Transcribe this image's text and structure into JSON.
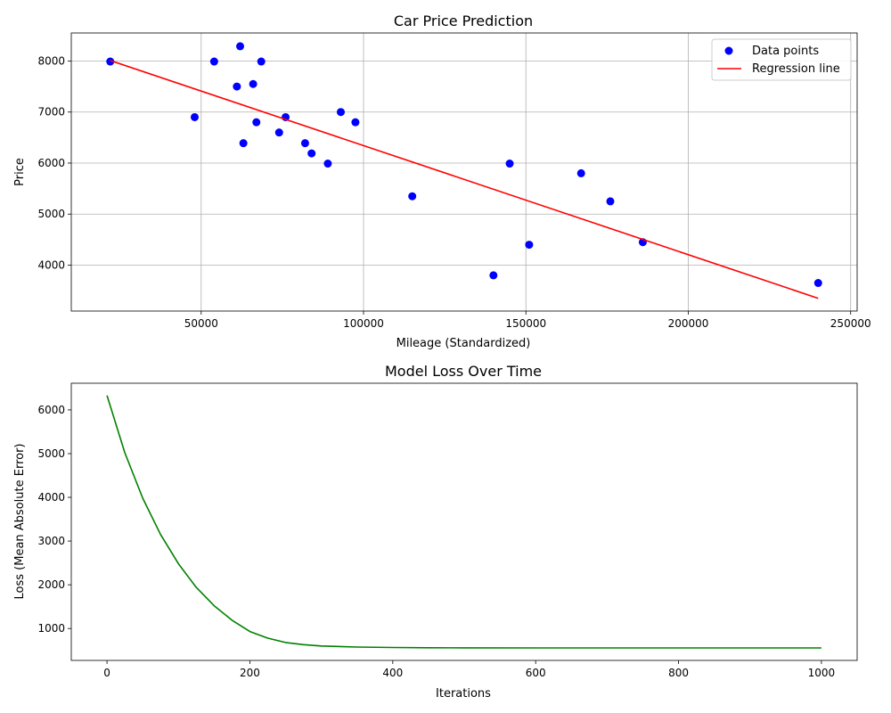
{
  "chart_data": [
    {
      "type": "scatter",
      "title": "Car Price Prediction",
      "xlabel": "Mileage (Standardized)",
      "ylabel": "Price",
      "xlim": [
        10000,
        252000
      ],
      "ylim": [
        3100,
        8550
      ],
      "xticks": [
        50000,
        100000,
        150000,
        200000,
        250000
      ],
      "yticks": [
        4000,
        5000,
        6000,
        7000,
        8000
      ],
      "grid": true,
      "legend_position": "top-right",
      "colors": {
        "points": "#0000ff",
        "line": "#ff0000"
      },
      "series": [
        {
          "name": "Data points",
          "kind": "scatter",
          "points": [
            [
              22000,
              7990
            ],
            [
              48000,
              6900
            ],
            [
              54000,
              7990
            ],
            [
              61000,
              7500
            ],
            [
              62000,
              8290
            ],
            [
              63000,
              6390
            ],
            [
              66000,
              7550
            ],
            [
              67000,
              6800
            ],
            [
              68500,
              7990
            ],
            [
              74000,
              6600
            ],
            [
              76000,
              6900
            ],
            [
              82000,
              6390
            ],
            [
              84000,
              6190
            ],
            [
              89000,
              5990
            ],
            [
              93000,
              7000
            ],
            [
              97500,
              6800
            ],
            [
              115000,
              5350
            ],
            [
              140000,
              3800
            ],
            [
              145000,
              5990
            ],
            [
              151000,
              4400
            ],
            [
              167000,
              5800
            ],
            [
              176000,
              5250
            ],
            [
              186000,
              4450
            ],
            [
              240000,
              3650
            ]
          ]
        },
        {
          "name": "Regression line",
          "kind": "line",
          "points": [
            [
              22000,
              8010
            ],
            [
              240000,
              3350
            ]
          ]
        }
      ]
    },
    {
      "type": "line",
      "title": "Model Loss Over Time",
      "xlabel": "Iterations",
      "ylabel": "Loss (Mean Absolute Error)",
      "xlim": [
        -50,
        1050
      ],
      "ylim": [
        270,
        6610
      ],
      "xticks": [
        0,
        200,
        400,
        600,
        800,
        1000
      ],
      "yticks": [
        1000,
        2000,
        3000,
        4000,
        5000,
        6000
      ],
      "grid": false,
      "colors": {
        "line": "#008000"
      },
      "series": [
        {
          "kind": "line",
          "x": [
            0,
            25,
            50,
            75,
            100,
            125,
            150,
            175,
            200,
            225,
            250,
            275,
            300,
            350,
            400,
            450,
            500,
            600,
            700,
            800,
            900,
            1000
          ],
          "y": [
            6330,
            5020,
            3980,
            3150,
            2480,
            1940,
            1520,
            1190,
            930,
            780,
            680,
            630,
            600,
            575,
            565,
            560,
            558,
            556,
            555,
            555,
            555,
            555
          ]
        }
      ]
    }
  ]
}
